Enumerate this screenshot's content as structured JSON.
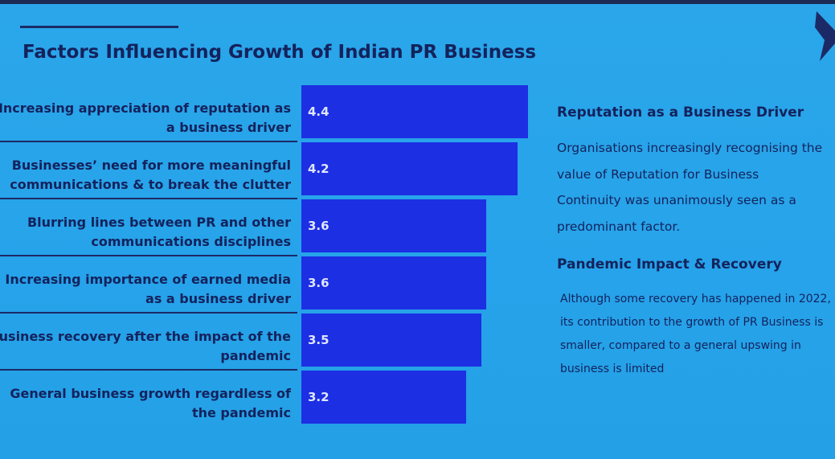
{
  "chart_data": {
    "type": "bar",
    "orientation": "horizontal",
    "title": "Factors Influencing Growth of Indian PR Business",
    "categories": [
      "Increasing appreciation of reputation as a business driver",
      "Businesses’ need for more meaningful communications & to break the clutter",
      "Blurring lines between PR and other communications disciplines",
      "Increasing importance of earned media as a business driver",
      "Business recovery after the impact of the pandemic",
      "General business growth regardless of the pandemic"
    ],
    "values": [
      4.4,
      4.2,
      3.6,
      3.6,
      3.5,
      3.2
    ],
    "color": "#1c2fe3"
  },
  "notes": [
    {
      "heading": "Reputation as a Business Driver",
      "lines": [
        "Organisations increasingly recognising the",
        "value of Reputation for Business",
        "Continuity was unanimously seen as a",
        "predominant factor."
      ]
    },
    {
      "heading": "Pandemic Impact & Recovery",
      "lines": [
        "Although some recovery has happened in 2022,",
        "its contribution to the growth of PR Business is",
        "smaller, compared to a general upswing in",
        "business is limited"
      ]
    }
  ]
}
